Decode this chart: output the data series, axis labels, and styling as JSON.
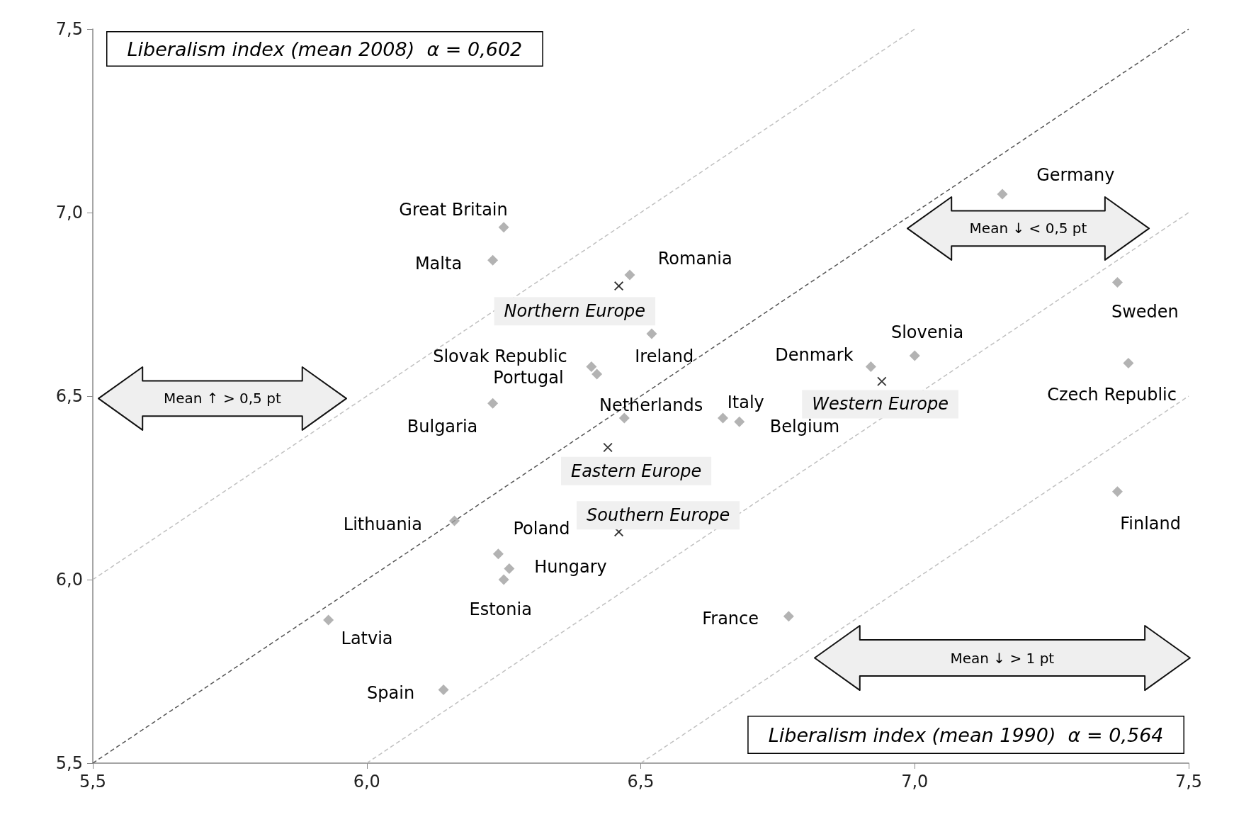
{
  "chart_data": {
    "type": "scatter",
    "xlabel": "Liberalism index (mean 1990)  α = 0,564",
    "ylabel": "Liberalism index (mean 2008)  α = 0,602",
    "xlim": [
      5.5,
      7.5
    ],
    "ylim": [
      5.5,
      7.5
    ],
    "xticks": [
      {
        "value": 5.5,
        "label": "5,5"
      },
      {
        "value": 6.0,
        "label": "6,0"
      },
      {
        "value": 6.5,
        "label": "6,5"
      },
      {
        "value": 7.0,
        "label": "7,0"
      },
      {
        "value": 7.5,
        "label": "7,5"
      }
    ],
    "yticks": [
      {
        "value": 5.5,
        "label": "5,5"
      },
      {
        "value": 6.0,
        "label": "6,0"
      },
      {
        "value": 6.5,
        "label": "6,5"
      },
      {
        "value": 7.0,
        "label": "7,0"
      },
      {
        "value": 7.5,
        "label": "7,5"
      }
    ],
    "grid": false,
    "series": [
      {
        "type": "line",
        "color": "#555555",
        "line_style": "dashed",
        "x": [
          5.5,
          7.5
        ],
        "values": [
          5.5,
          7.5
        ]
      },
      {
        "type": "line",
        "color": "#c0c0c0",
        "line_style": "dashed",
        "x": [
          5.5,
          7.0
        ],
        "values": [
          6.0,
          7.5
        ]
      },
      {
        "type": "line",
        "color": "#c0c0c0",
        "line_style": "dashed",
        "x": [
          6.0,
          7.5
        ],
        "values": [
          5.5,
          7.0
        ]
      },
      {
        "type": "line",
        "color": "#c0c0c0",
        "line_style": "dashed",
        "x": [
          6.5,
          7.5
        ],
        "values": [
          5.5,
          6.5
        ]
      },
      {
        "marker": "diamond",
        "color": "#a0a0a0",
        "x": [
          7.16,
          6.25,
          6.23,
          6.48,
          6.52,
          6.41,
          6.42,
          6.23,
          6.47,
          6.65,
          6.68,
          6.92,
          7.0,
          7.37,
          7.39,
          7.37,
          6.16,
          6.24,
          6.26,
          6.25,
          5.93,
          6.77,
          6.14
        ],
        "values": [
          7.05,
          6.96,
          6.87,
          6.83,
          6.67,
          6.58,
          6.56,
          6.48,
          6.44,
          6.44,
          6.43,
          6.58,
          6.61,
          6.81,
          6.59,
          6.24,
          6.16,
          6.07,
          6.03,
          6.0,
          5.89,
          5.9,
          5.7
        ]
      },
      {
        "marker": "cross",
        "color": "#000000",
        "x": [
          6.46,
          6.94,
          6.44,
          6.46
        ],
        "values": [
          6.8,
          6.54,
          6.36,
          6.13
        ]
      }
    ],
    "annotations": [
      {
        "text": "Germany",
        "x": 7.16,
        "y": 7.05
      },
      {
        "text": "Great Britain",
        "x": 6.25,
        "y": 6.96
      },
      {
        "text": "Malta",
        "x": 6.23,
        "y": 6.87
      },
      {
        "text": "Romania",
        "x": 6.48,
        "y": 6.83
      },
      {
        "text": "Ireland",
        "x": 6.52,
        "y": 6.67
      },
      {
        "text": "Slovak Republic",
        "x": 6.41,
        "y": 6.58
      },
      {
        "text": "Portugal",
        "x": 6.42,
        "y": 6.56
      },
      {
        "text": "Bulgaria",
        "x": 6.23,
        "y": 6.48
      },
      {
        "text": "Netherlands",
        "x": 6.47,
        "y": 6.44
      },
      {
        "text": "Italy",
        "x": 6.65,
        "y": 6.44
      },
      {
        "text": "Belgium",
        "x": 6.68,
        "y": 6.43
      },
      {
        "text": "Denmark",
        "x": 6.92,
        "y": 6.58
      },
      {
        "text": "Slovenia",
        "x": 7.0,
        "y": 6.61
      },
      {
        "text": "Sweden",
        "x": 7.37,
        "y": 6.81
      },
      {
        "text": "Czech Republic",
        "x": 7.39,
        "y": 6.59
      },
      {
        "text": "Finland",
        "x": 7.37,
        "y": 6.24
      },
      {
        "text": "Lithuania",
        "x": 6.16,
        "y": 6.16
      },
      {
        "text": "Poland",
        "x": 6.24,
        "y": 6.07
      },
      {
        "text": "Hungary",
        "x": 6.26,
        "y": 6.03
      },
      {
        "text": "Estonia",
        "x": 6.25,
        "y": 6.0
      },
      {
        "text": "Latvia",
        "x": 5.93,
        "y": 5.89
      },
      {
        "text": "France",
        "x": 6.77,
        "y": 5.9
      },
      {
        "text": "Spain",
        "x": 6.14,
        "y": 5.7
      },
      {
        "text": "Northern Europe",
        "x": 6.46,
        "y": 6.8
      },
      {
        "text": "Western Europe",
        "x": 6.94,
        "y": 6.54
      },
      {
        "text": "Eastern Europe",
        "x": 6.44,
        "y": 6.36
      },
      {
        "text": "Southern Europe",
        "x": 6.46,
        "y": 6.13
      },
      "Mean ↑ > 0,5 pt",
      "Mean ↓ < 0,5 pt",
      "Mean ↓ > 1 pt"
    ]
  }
}
